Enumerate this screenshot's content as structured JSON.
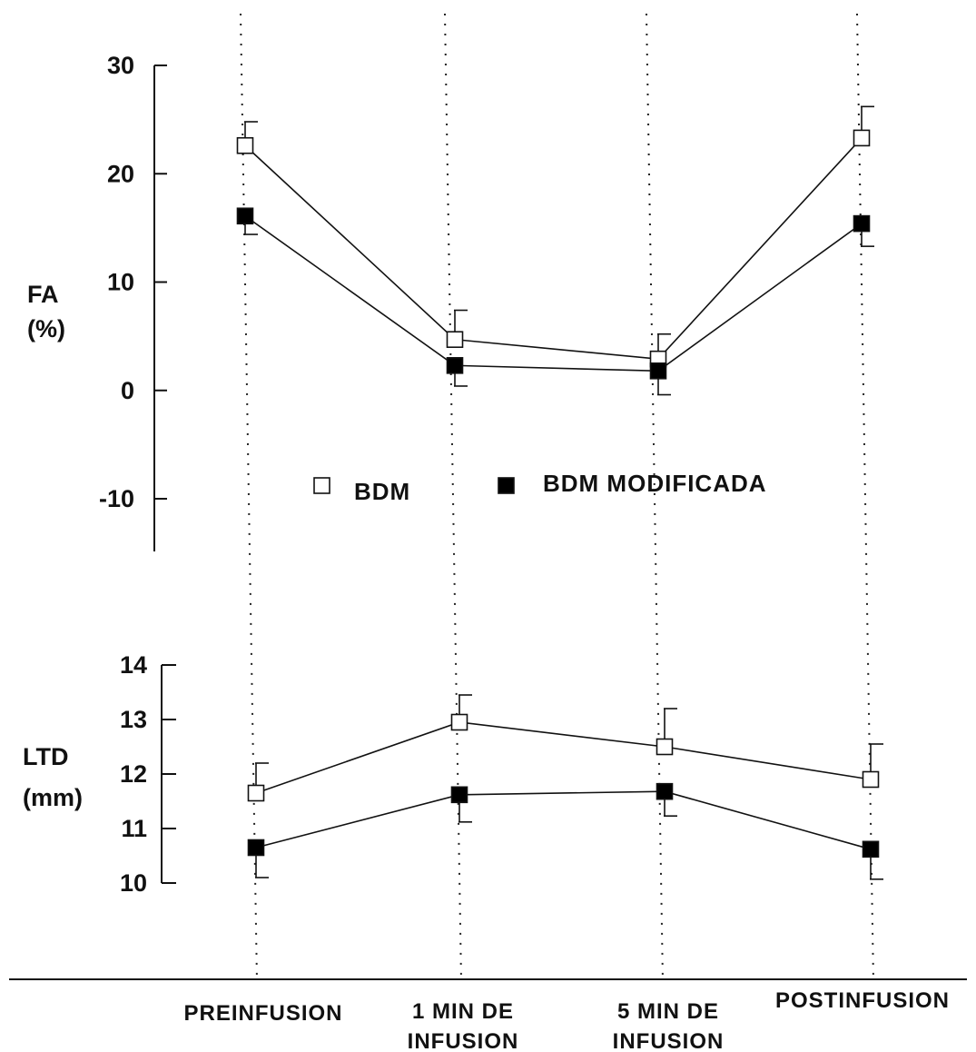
{
  "categories": [
    [
      "PREINFUSION"
    ],
    [
      "1 MIN DE",
      "INFUSION"
    ],
    [
      "5 MIN DE",
      "INFUSION"
    ],
    [
      "POSTINFUSION"
    ]
  ],
  "legend": [
    {
      "label": "BDM",
      "fill": "#ffffff"
    },
    {
      "label": "BDM MODIFICADA",
      "fill": "#000000"
    }
  ],
  "chart_data": [
    {
      "type": "line",
      "ylabel": [
        "FA",
        "(%)"
      ],
      "ylim": [
        -15,
        30
      ],
      "yticks": [
        30,
        20,
        10,
        0,
        -10
      ],
      "categories": [
        "PREINFUSION",
        "1 MIN DE INFUSION",
        "5 MIN DE INFUSION",
        "POSTINFUSION"
      ],
      "series": [
        {
          "name": "BDM",
          "marker": "open-square",
          "values": [
            22.6,
            4.7,
            2.9,
            23.3
          ],
          "err_up": [
            2.2,
            2.7,
            2.3,
            2.9
          ]
        },
        {
          "name": "BDM MODIFICADA",
          "marker": "filled-square",
          "values": [
            16.1,
            2.3,
            1.8,
            15.4
          ],
          "err_down": [
            1.7,
            1.9,
            2.2,
            2.1
          ]
        }
      ]
    },
    {
      "type": "line",
      "ylabel": [
        "LTD",
        "(mm)"
      ],
      "ylim": [
        10,
        14
      ],
      "yticks": [
        14,
        13,
        12,
        11,
        10
      ],
      "categories": [
        "PREINFUSION",
        "1 MIN DE INFUSION",
        "5 MIN DE INFUSION",
        "POSTINFUSION"
      ],
      "series": [
        {
          "name": "BDM",
          "marker": "open-square",
          "values": [
            11.65,
            12.95,
            12.5,
            11.9
          ],
          "err_up": [
            0.55,
            0.5,
            0.7,
            0.65
          ]
        },
        {
          "name": "BDM MODIFICADA",
          "marker": "filled-square",
          "values": [
            10.65,
            11.62,
            11.68,
            10.62
          ],
          "err_down": [
            0.55,
            0.5,
            0.45,
            0.55
          ]
        }
      ]
    }
  ]
}
